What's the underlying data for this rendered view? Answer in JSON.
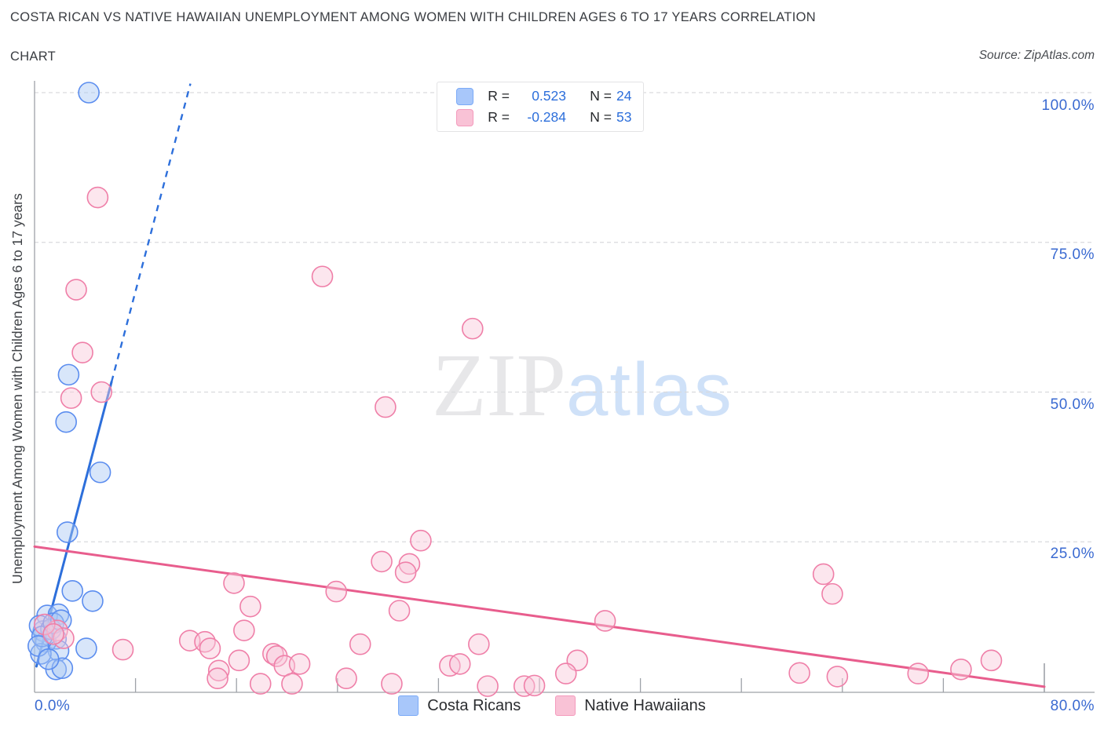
{
  "header": {
    "title_line1": "COSTA RICAN VS NATIVE HAWAIIAN UNEMPLOYMENT AMONG WOMEN WITH CHILDREN AGES 6 TO 17 YEARS CORRELATION",
    "title_line2": "CHART",
    "source": "Source: ZipAtlas.com"
  },
  "watermark": {
    "part1": "ZIP",
    "part2": "atlas"
  },
  "stats_legend": {
    "rows": [
      {
        "r_label": "R =",
        "r_value": "0.523",
        "n_label": "N =",
        "n_value": "24"
      },
      {
        "r_label": "R =",
        "r_value": "-0.284",
        "n_label": "N =",
        "n_value": "53"
      }
    ]
  },
  "axes": {
    "y_title": "Unemployment Among Women with Children Ages 6 to 17 years",
    "y_tick_labels": [
      "100.0%",
      "75.0%",
      "50.0%",
      "25.0%"
    ],
    "x_min_label": "0.0%",
    "x_max_label": "80.0%"
  },
  "bottom_legend": [
    {
      "label": "Costa Ricans"
    },
    {
      "label": "Native Hawaiians"
    }
  ],
  "colors": {
    "blue_fill": "#a9c7f5",
    "blue_stroke": "#5b8def",
    "blue_line": "#2d6fdb",
    "pink_fill": "#f9c7da",
    "pink_stroke": "#ef7fa8",
    "pink_line": "#e85d8d",
    "grid": "#d9dadd",
    "axis": "#9ea2a8",
    "label_blue": "#3a6ad1"
  },
  "chart_data": {
    "type": "scatter",
    "xlabel": "",
    "ylabel": "Unemployment Among Women with Children Ages 6 to 17 years",
    "xlim": [
      0,
      80
    ],
    "ylim": [
      0,
      100
    ],
    "x_units": "percent",
    "y_units": "percent",
    "grid": "horizontal-dashed",
    "y_gridlines": [
      100,
      75,
      50,
      25
    ],
    "series": [
      {
        "name": "Costa Ricans",
        "R": 0.523,
        "N": 24,
        "points": [
          [
            4.3,
            100.0
          ],
          [
            2.7,
            52.9
          ],
          [
            2.5,
            45.0
          ],
          [
            5.2,
            36.6
          ],
          [
            2.6,
            26.6
          ],
          [
            3.0,
            16.8
          ],
          [
            4.6,
            15.1
          ],
          [
            1.0,
            12.7
          ],
          [
            1.9,
            12.9
          ],
          [
            0.7,
            10.1
          ],
          [
            1.7,
            8.8
          ],
          [
            0.9,
            8.3
          ],
          [
            1.9,
            6.8
          ],
          [
            0.5,
            6.3
          ],
          [
            4.1,
            7.2
          ],
          [
            1.7,
            3.7
          ],
          [
            2.2,
            3.9
          ],
          [
            0.4,
            11.0
          ],
          [
            1.3,
            10.4
          ],
          [
            0.6,
            9.2
          ],
          [
            1.5,
            11.4
          ],
          [
            0.3,
            7.6
          ],
          [
            2.1,
            11.9
          ],
          [
            1.1,
            5.4
          ]
        ],
        "trend_solid": [
          [
            0.15,
            4.2
          ],
          [
            6.1,
            51.7
          ]
        ],
        "trend_dashed": [
          [
            6.1,
            51.7
          ],
          [
            12.35,
            101.5
          ]
        ]
      },
      {
        "name": "Native Hawaiians",
        "R": -0.284,
        "N": 53,
        "points": [
          [
            5.0,
            82.5
          ],
          [
            3.3,
            67.1
          ],
          [
            22.8,
            69.3
          ],
          [
            34.7,
            60.6
          ],
          [
            3.8,
            56.6
          ],
          [
            27.8,
            47.5
          ],
          [
            2.9,
            49.0
          ],
          [
            5.3,
            50.0
          ],
          [
            30.6,
            25.2
          ],
          [
            27.5,
            21.7
          ],
          [
            29.7,
            21.3
          ],
          [
            29.4,
            19.9
          ],
          [
            15.8,
            18.1
          ],
          [
            17.1,
            14.2
          ],
          [
            16.6,
            10.2
          ],
          [
            12.3,
            8.5
          ],
          [
            13.5,
            8.3
          ],
          [
            13.9,
            7.2
          ],
          [
            16.2,
            5.2
          ],
          [
            14.6,
            3.5
          ],
          [
            14.5,
            2.2
          ],
          [
            17.9,
            1.3
          ],
          [
            18.9,
            6.3
          ],
          [
            19.2,
            5.9
          ],
          [
            19.8,
            4.3
          ],
          [
            21.0,
            4.6
          ],
          [
            20.4,
            1.3
          ],
          [
            23.9,
            16.7
          ],
          [
            24.7,
            2.2
          ],
          [
            25.8,
            7.9
          ],
          [
            28.3,
            1.3
          ],
          [
            28.9,
            13.5
          ],
          [
            32.9,
            4.3
          ],
          [
            35.2,
            7.9
          ],
          [
            33.7,
            4.6
          ],
          [
            35.9,
            0.9
          ],
          [
            38.8,
            0.9
          ],
          [
            39.6,
            1.0
          ],
          [
            43.0,
            5.2
          ],
          [
            42.1,
            3.0
          ],
          [
            45.2,
            11.8
          ],
          [
            62.5,
            19.6
          ],
          [
            63.2,
            16.3
          ],
          [
            60.6,
            3.1
          ],
          [
            63.6,
            2.5
          ],
          [
            70.0,
            3.0
          ],
          [
            73.4,
            3.7
          ],
          [
            75.8,
            5.2
          ],
          [
            1.8,
            10.2
          ],
          [
            2.3,
            8.9
          ],
          [
            7.0,
            7.0
          ],
          [
            0.8,
            11.2
          ],
          [
            1.5,
            9.6
          ]
        ],
        "trend_solid": [
          [
            0.0,
            24.2
          ],
          [
            80.0,
            0.8
          ]
        ],
        "trend_dashed": null
      }
    ]
  }
}
